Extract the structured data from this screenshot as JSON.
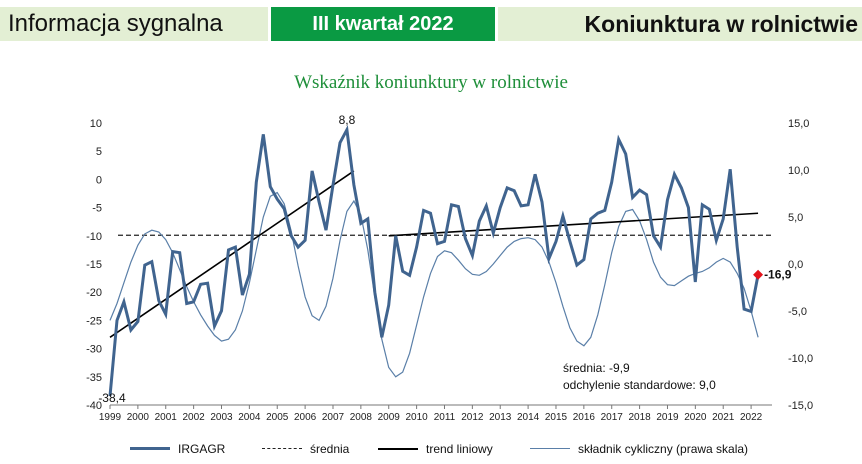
{
  "header": {
    "left": "Informacja sygnalna",
    "middle": "III kwartał 2022",
    "right": "Koniunktura w rolnictwie"
  },
  "colors": {
    "main": "#40648f",
    "cyclic": "#5a7fa8",
    "trend": "#000000",
    "last_point": "#e3141c",
    "green": "#0a9a43"
  },
  "chart_data": {
    "type": "line",
    "title": "Wskaźnik koniunktury w rolnictwie",
    "y_left": {
      "min": -40,
      "max": 10,
      "ticks": [
        "10",
        "5",
        "0",
        "-5",
        "-10",
        "-15",
        "-20",
        "-25",
        "-30",
        "-35",
        "-40"
      ]
    },
    "y_right": {
      "min": -15,
      "max": 15,
      "ticks": [
        "15,0",
        "10,0",
        "5,0",
        "0,0",
        "-5,0",
        "-10,0",
        "-15,0"
      ]
    },
    "x_ticks": [
      "1999",
      "2000",
      "2001",
      "2002",
      "2003",
      "2004",
      "2005",
      "2006",
      "2007",
      "2008",
      "2009",
      "2010",
      "2011",
      "2012",
      "2013",
      "2014",
      "2015",
      "2016",
      "2017",
      "2018",
      "2019",
      "2020",
      "2021",
      "2022"
    ],
    "x_start": 1999.0,
    "x_step": 0.25,
    "series": [
      {
        "name": "IRGAGR",
        "axis": "left",
        "values": [
          -38.4,
          -25,
          -21.7,
          -26.7,
          -25.2,
          -15.2,
          -14.6,
          -21.5,
          -23.9,
          -12.8,
          -13,
          -22,
          -21.7,
          -18.6,
          -18.4,
          -26,
          -23.3,
          -12.5,
          -12,
          -20.5,
          -16.8,
          -0.5,
          8,
          -1.3,
          -3.5,
          -5.2,
          -10,
          -12,
          -10.8,
          1.5,
          -4,
          -9,
          -1,
          6.5,
          8.8,
          -1,
          -7.8,
          -7,
          -20,
          -28,
          -22.3,
          -10,
          -16.3,
          -17,
          -12,
          -5.5,
          -6,
          -11.4,
          -11,
          -4.5,
          -4.8,
          -10.5,
          -13.5,
          -7.4,
          -4.7,
          -9.5,
          -5,
          -1.5,
          -2,
          -4.7,
          -4.5,
          0.9,
          -4,
          -14,
          -11,
          -6.5,
          -11,
          -15.2,
          -14.2,
          -7,
          -6,
          -5.5,
          -0.5,
          7.1,
          4.5,
          -3.2,
          -1.9,
          -2.7,
          -10,
          -12,
          -3.6,
          0.9,
          -1.5,
          -5,
          -18.2,
          -4.5,
          -5.3,
          -10.8,
          -7,
          1.8,
          -12,
          -23,
          -23.4,
          -16.9
        ]
      },
      {
        "name": "składnik cykliczny (prawa skala)",
        "axis": "right",
        "values": [
          -6,
          -4.2,
          -2,
          0.2,
          2,
          3.2,
          3.6,
          3.4,
          2.6,
          1.2,
          -0.6,
          -2.4,
          -4,
          -5.4,
          -6.6,
          -7.6,
          -8.2,
          -8,
          -7,
          -5,
          -2,
          1.5,
          5,
          7.2,
          7.6,
          6.4,
          3.5,
          -0.2,
          -3.5,
          -5.5,
          -6,
          -4.5,
          -1.5,
          2.5,
          5.6,
          6.7,
          5.2,
          1.5,
          -3.5,
          -8,
          -11,
          -12,
          -11.5,
          -9.5,
          -6.5,
          -3.5,
          -1,
          0.8,
          1.4,
          1.2,
          0.4,
          -0.5,
          -1.1,
          -1.2,
          -0.8,
          0,
          0.9,
          1.8,
          2.4,
          2.7,
          2.8,
          2.6,
          1.8,
          0.2,
          -2,
          -4.5,
          -6.8,
          -8.2,
          -8.7,
          -7.8,
          -5.4,
          -2.2,
          1.2,
          4,
          5.6,
          5.8,
          4.6,
          2.6,
          0.2,
          -1.4,
          -2.2,
          -2.3,
          -1.8,
          -1.3,
          -1,
          -0.8,
          -0.4,
          0.2,
          0.6,
          0.2,
          -1,
          -2.6,
          -5,
          -7.8
        ]
      },
      {
        "name": "średnia",
        "axis": "left",
        "value": -9.9
      },
      {
        "name": "trend liniowy",
        "axis": "left",
        "segments": [
          {
            "x": [
              1999.0,
              2007.75
            ],
            "y": [
              -28.0,
              1.5
            ]
          },
          {
            "x": [
              2009.0,
              2022.25
            ],
            "y": [
              -10.0,
              -6.0
            ]
          }
        ]
      }
    ],
    "annotations": {
      "max_label": "8,8",
      "min_label": "-38,4",
      "last_label": "-16,9"
    },
    "stats": {
      "mean_text": "średnia: -9,9",
      "sd_text": "odchylenie standardowe: 9,0"
    },
    "legend": [
      "IRGAGR",
      "średnia",
      "trend liniowy",
      "składnik cykliczny (prawa skala)"
    ]
  }
}
